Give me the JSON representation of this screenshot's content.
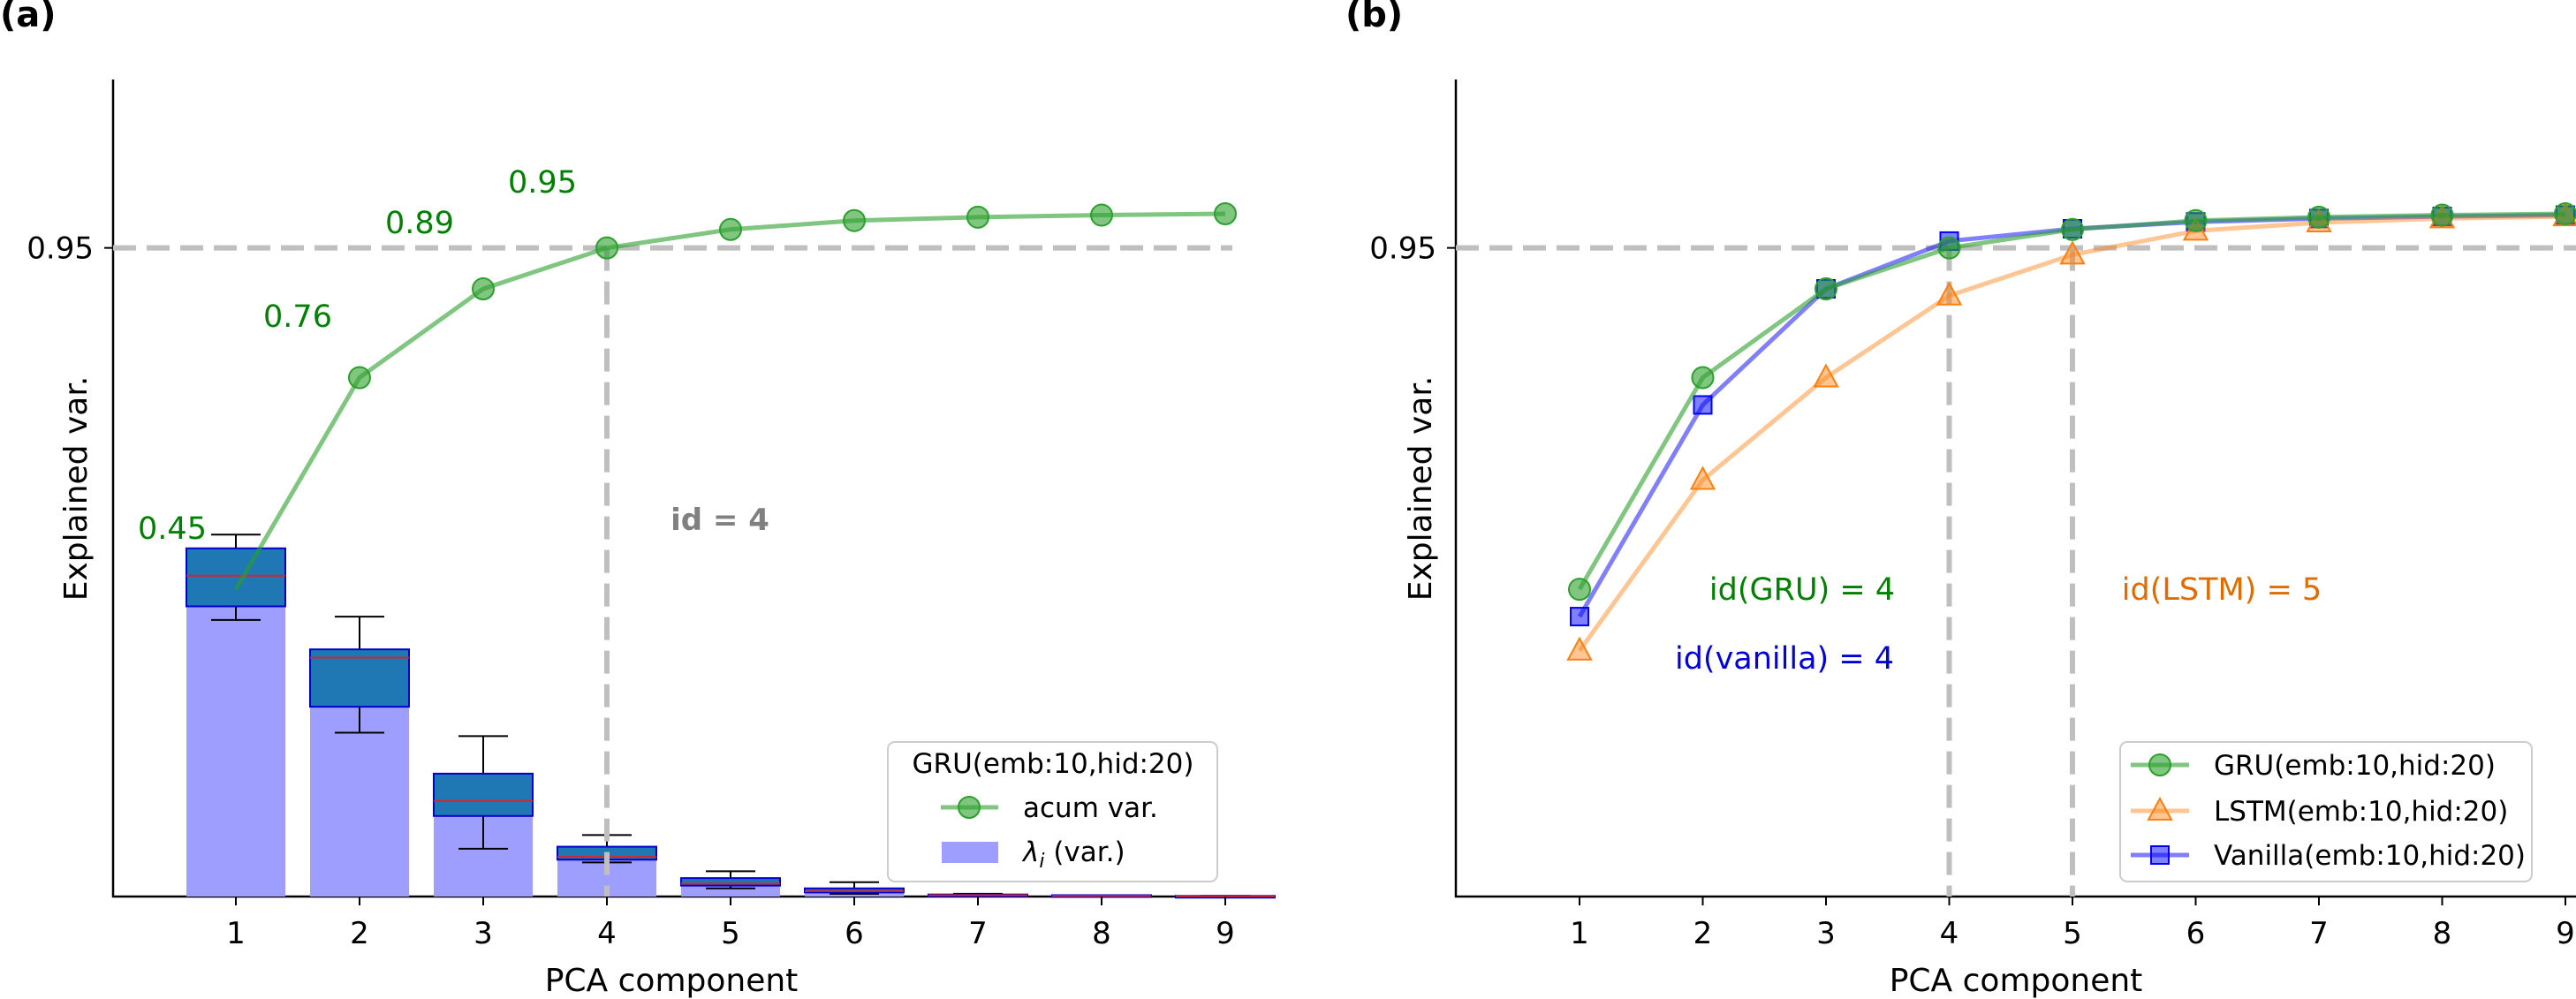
{
  "chart_data": [
    {
      "type": "bar",
      "panel_label": "(a)",
      "xlabel": "PCA component",
      "ylabel": "Explained var.",
      "x": [
        1,
        2,
        3,
        4,
        5,
        6,
        7,
        8,
        9
      ],
      "ylim": [
        0,
        1.26
      ],
      "yticks": [
        {
          "value": 0.95,
          "label": "0.95"
        }
      ],
      "grid": false,
      "hline": 0.95,
      "vline": 4,
      "text_annotation": "id = 4",
      "bars": {
        "name": "λ_i (var.)",
        "values": [
          0.425,
          0.31,
          0.14,
          0.055,
          0.025,
          0.012,
          0.004,
          0.002,
          0.001
        ],
        "color": "#9E9EFF"
      },
      "boxes": [
        {
          "x": 1,
          "q1": 0.425,
          "median": 0.47,
          "q3": 0.51,
          "whisker_low": 0.405,
          "whisker_high": 0.53
        },
        {
          "x": 2,
          "q1": 0.278,
          "median": 0.35,
          "q3": 0.362,
          "whisker_low": 0.24,
          "whisker_high": 0.41
        },
        {
          "x": 3,
          "q1": 0.118,
          "median": 0.14,
          "q3": 0.18,
          "whisker_low": 0.07,
          "whisker_high": 0.235
        },
        {
          "x": 4,
          "q1": 0.054,
          "median": 0.058,
          "q3": 0.073,
          "whisker_low": 0.05,
          "whisker_high": 0.09
        },
        {
          "x": 5,
          "q1": 0.016,
          "median": 0.019,
          "q3": 0.027,
          "whisker_low": 0.012,
          "whisker_high": 0.037
        },
        {
          "x": 6,
          "q1": 0.006,
          "median": 0.008,
          "q3": 0.012,
          "whisker_low": 0.004,
          "whisker_high": 0.021
        },
        {
          "x": 7,
          "q1": 0.001,
          "median": 0.002,
          "q3": 0.003,
          "whisker_low": 0.0,
          "whisker_high": 0.004
        },
        {
          "x": 8,
          "q1": 0.0005,
          "median": 0.001,
          "q3": 0.002,
          "whisker_low": 0.0,
          "whisker_high": 0.002
        },
        {
          "x": 9,
          "q1": 0.0,
          "median": 0.0005,
          "q3": 0.001,
          "whisker_low": 0.0,
          "whisker_high": 0.001
        }
      ],
      "series": [
        {
          "name": "acum var.",
          "values": [
            0.45,
            0.76,
            0.89,
            0.95,
            0.977,
            0.99,
            0.995,
            0.998,
            1.0
          ],
          "color": "#2CA02C",
          "marker": "circle"
        }
      ],
      "value_labels": [
        {
          "x": 1,
          "text": "0.45"
        },
        {
          "x": 2,
          "text": "0.76"
        },
        {
          "x": 3,
          "text": "0.89"
        },
        {
          "x": 4,
          "text": "0.95"
        }
      ],
      "legend": {
        "title": "GRU(emb:10,hid:20)",
        "position": "lower-right",
        "entries": [
          "acum var.",
          "λ_i (var.)"
        ]
      }
    },
    {
      "type": "line",
      "panel_label": "(b)",
      "xlabel": "PCA component",
      "ylabel": "Explained var.",
      "x": [
        1,
        2,
        3,
        4,
        5,
        6,
        7,
        8,
        9
      ],
      "ylim": [
        0,
        1.26
      ],
      "yticks": [
        {
          "value": 0.95,
          "label": "0.95"
        }
      ],
      "grid": false,
      "hline": 0.95,
      "vlines": [
        4,
        5
      ],
      "text_annotations": [
        {
          "text": "id(GRU) = 4",
          "color": "#008000"
        },
        {
          "text": "id(vanilla) = 4",
          "color": "#0000DD"
        },
        {
          "text": "id(LSTM) = 5",
          "color": "#E06C00"
        }
      ],
      "series": [
        {
          "name": "GRU(emb:10,hid:20)",
          "values": [
            0.45,
            0.76,
            0.89,
            0.95,
            0.977,
            0.99,
            0.995,
            0.998,
            1.0
          ],
          "color": "#2CA02C",
          "marker": "circle"
        },
        {
          "name": "LSTM(emb:10,hid:20)",
          "values": [
            0.36,
            0.61,
            0.76,
            0.88,
            0.94,
            0.975,
            0.987,
            0.993,
            0.996
          ],
          "color": "#FF7F0E",
          "marker": "triangle"
        },
        {
          "name": "Vanilla(emb:10,hid:20)",
          "values": [
            0.41,
            0.72,
            0.89,
            0.96,
            0.978,
            0.988,
            0.993,
            0.996,
            0.998
          ],
          "color": "#0000FF",
          "marker": "square"
        }
      ],
      "legend": {
        "position": "lower-right",
        "entries": [
          "GRU(emb:10,hid:20)",
          "LSTM(emb:10,hid:20)",
          "Vanilla(emb:10,hid:20)"
        ]
      }
    }
  ]
}
